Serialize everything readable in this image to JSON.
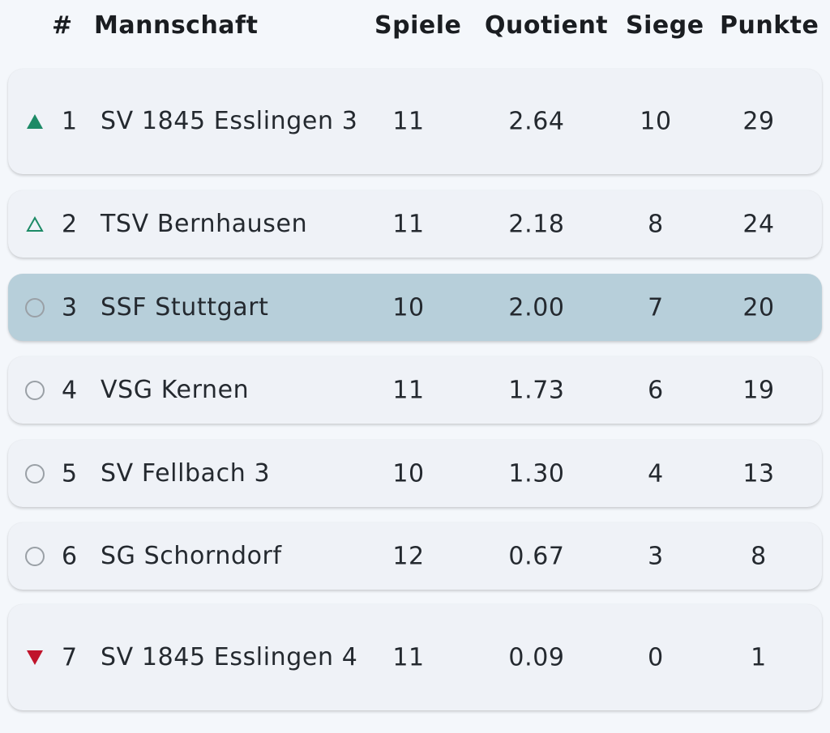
{
  "header": {
    "rank": "#",
    "team": "Mannschaft",
    "games": "Spiele",
    "quotient": "Quotient",
    "wins": "Siege",
    "points": "Punkte"
  },
  "colors": {
    "promotion": "#1c8a66",
    "relegation": "#c0142b",
    "neutral": "#9aa0a6",
    "highlight_row": "#b7cfda"
  },
  "rows": [
    {
      "indicator": "triangle-up-filled-icon",
      "rank": "1",
      "team": "SV 1845 Esslingen 3",
      "games": "11",
      "quotient": "2.64",
      "wins": "10",
      "points": "29",
      "highlighted": false
    },
    {
      "indicator": "triangle-up-outline-icon",
      "rank": "2",
      "team": "TSV Bernhausen",
      "games": "11",
      "quotient": "2.18",
      "wins": "8",
      "points": "24",
      "highlighted": false
    },
    {
      "indicator": "circle-outline-icon",
      "rank": "3",
      "team": "SSF Stuttgart",
      "games": "10",
      "quotient": "2.00",
      "wins": "7",
      "points": "20",
      "highlighted": true
    },
    {
      "indicator": "circle-outline-icon",
      "rank": "4",
      "team": "VSG Kernen",
      "games": "11",
      "quotient": "1.73",
      "wins": "6",
      "points": "19",
      "highlighted": false
    },
    {
      "indicator": "circle-outline-icon",
      "rank": "5",
      "team": "SV Fellbach 3",
      "games": "10",
      "quotient": "1.30",
      "wins": "4",
      "points": "13",
      "highlighted": false
    },
    {
      "indicator": "circle-outline-icon",
      "rank": "6",
      "team": "SG Schorndorf",
      "games": "12",
      "quotient": "0.67",
      "wins": "3",
      "points": "8",
      "highlighted": false
    },
    {
      "indicator": "triangle-down-filled-icon",
      "rank": "7",
      "team": "SV 1845 Esslingen 4",
      "games": "11",
      "quotient": "0.09",
      "wins": "0",
      "points": "1",
      "highlighted": false
    }
  ]
}
